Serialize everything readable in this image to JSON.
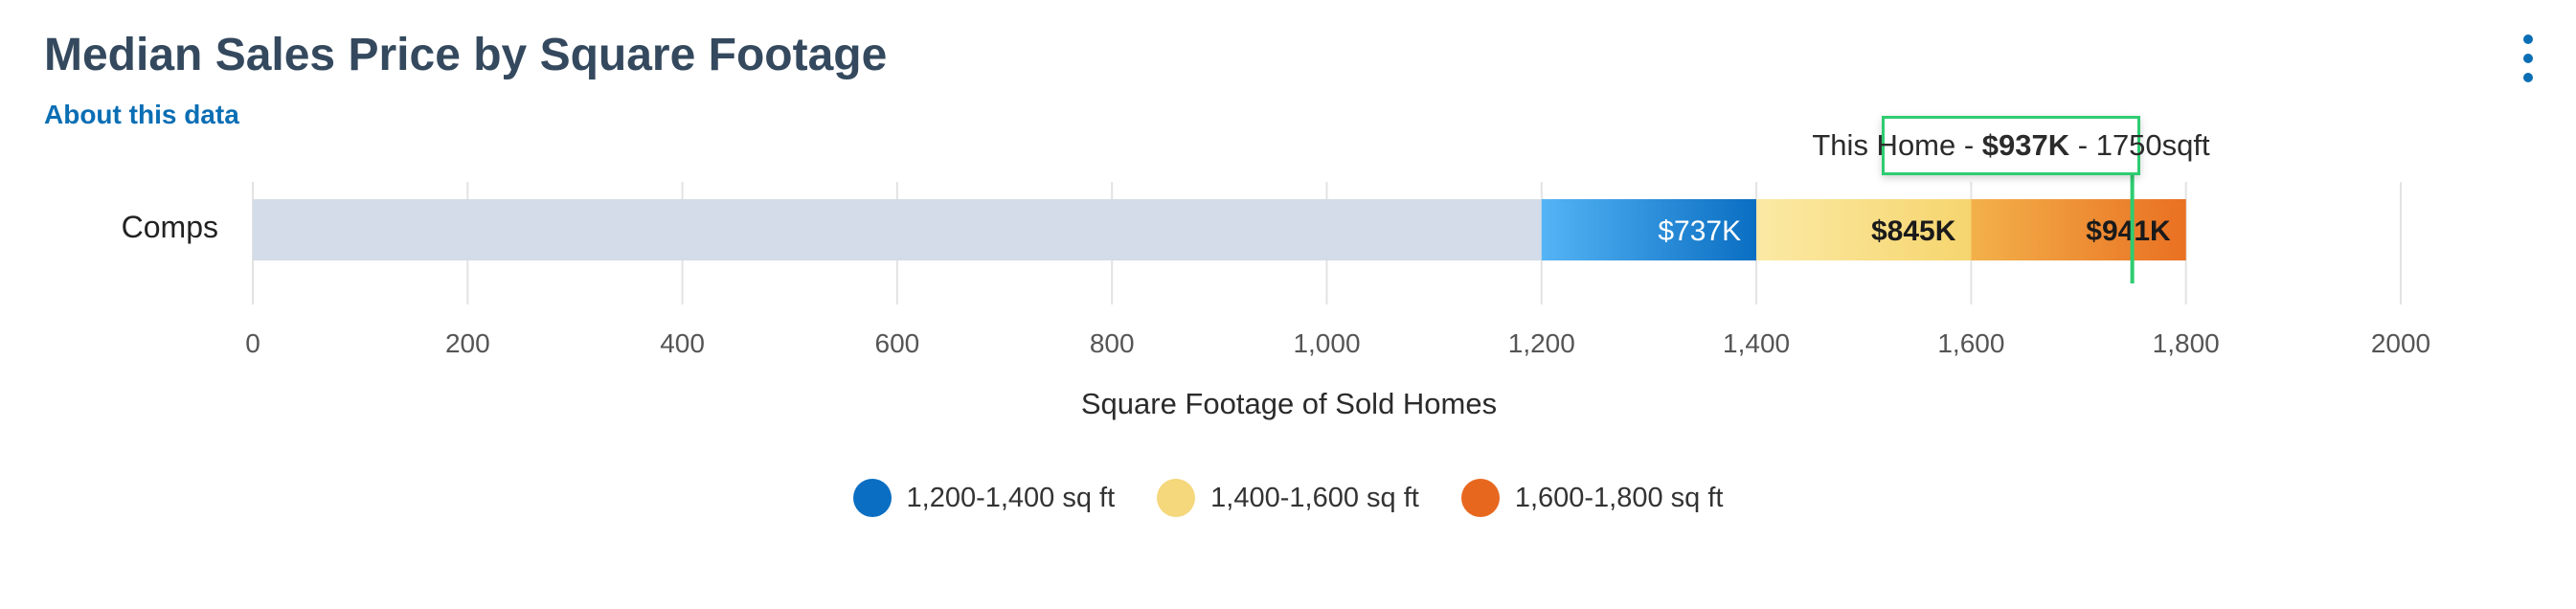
{
  "header": {
    "title": "Median Sales Price by Square Footage",
    "about_link": "About this data",
    "menu_icon": "kebab-menu-icon"
  },
  "chart_data": {
    "type": "bar",
    "orientation": "horizontal",
    "stacked": true,
    "category": "Comps",
    "xlabel": "Square Footage of Sold Homes",
    "xlim": [
      0,
      2000
    ],
    "x_ticks": [
      0,
      200,
      400,
      600,
      800,
      1000,
      1200,
      1400,
      1600,
      1800,
      2000
    ],
    "x_tick_labels": [
      "0",
      "200",
      "400",
      "600",
      "800",
      "1,000",
      "1,200",
      "1,400",
      "1,600",
      "1,800",
      "2000"
    ],
    "grid": true,
    "background_range": [
      0,
      1200
    ],
    "background_color": "#d3dce8",
    "segments": [
      {
        "name": "1,200-1,400 sq ft",
        "range": [
          1200,
          1400
        ],
        "label": "$737K",
        "value_k": 737,
        "color_start": "#54b4f5",
        "color_end": "#0a6ec2",
        "legend_color": "#0a6ec2",
        "label_color": "#ffffff"
      },
      {
        "name": "1,400-1,600 sq ft",
        "range": [
          1400,
          1600
        ],
        "label": "$845K",
        "value_k": 845,
        "color_start": "#fbe9a4",
        "color_end": "#f6d56e",
        "legend_color": "#f5d77c",
        "label_color": "#1a1a1a"
      },
      {
        "name": "1,600-1,800 sq ft",
        "range": [
          1600,
          1800
        ],
        "label": "$941K",
        "value_k": 941,
        "color_start": "#f3b14a",
        "color_end": "#e97022",
        "legend_color": "#e8671f",
        "label_color": "#1a1a1a"
      }
    ],
    "annotation": {
      "x": 1750,
      "prefix": "This Home - ",
      "price": "$937K",
      "suffix": " - 1750sqft",
      "color": "#2ecc71"
    },
    "legend_position": "bottom-center"
  }
}
